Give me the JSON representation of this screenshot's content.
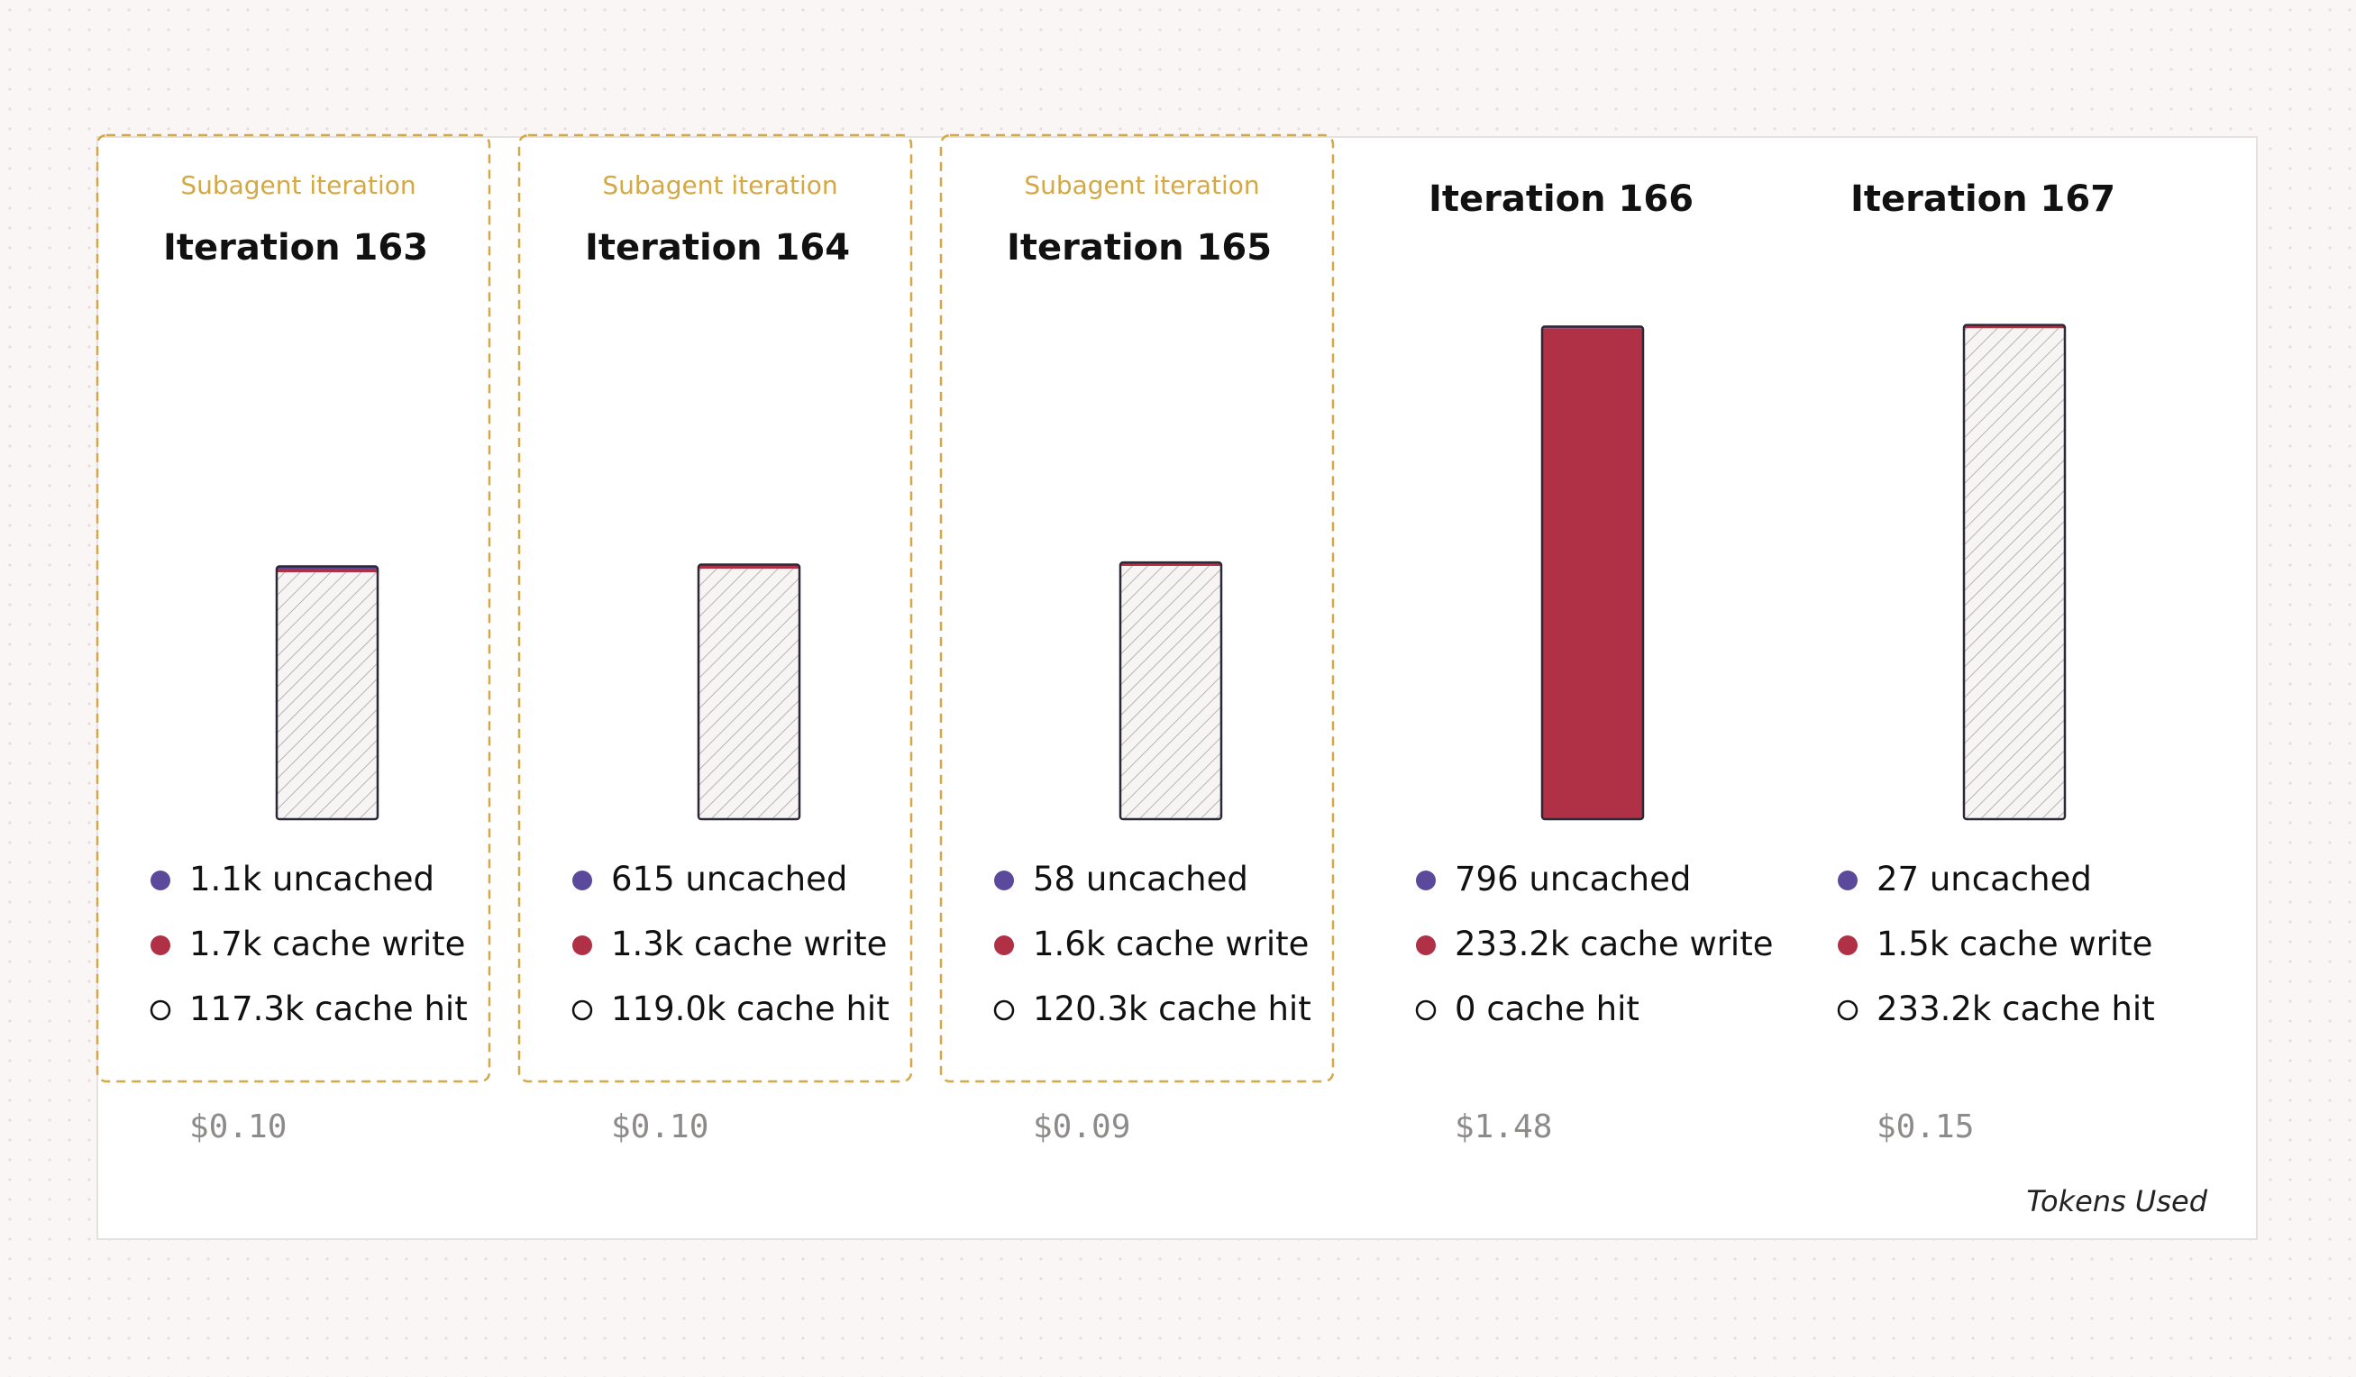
{
  "chart_data": {
    "type": "stacked-bar",
    "categories": [
      "Iteration 163",
      "Iteration 164",
      "Iteration 165",
      "Iteration 166",
      "Iteration 167"
    ],
    "subagent_label": "Subagent iteration",
    "subagent": [
      true,
      true,
      true,
      false,
      false
    ],
    "series": [
      {
        "name": "uncached",
        "color": "#5b4a9b",
        "values": [
          1100,
          615,
          58,
          796,
          27
        ],
        "value_labels": [
          "1.1k",
          "615",
          "58",
          "796",
          "27"
        ]
      },
      {
        "name": "cache write",
        "color": "#b03045",
        "values": [
          1700,
          1300,
          1600,
          233200,
          1500
        ],
        "value_labels": [
          "1.7k",
          "1.3k",
          "1.6k",
          "233.2k",
          "1.5k"
        ]
      },
      {
        "name": "cache hit",
        "color": "hatch",
        "values": [
          117300,
          119000,
          120300,
          0,
          233200
        ],
        "value_labels": [
          "117.3k",
          "119.0k",
          "120.3k",
          "0",
          "233.2k"
        ]
      }
    ],
    "costs": [
      "$0.10",
      "$0.10",
      "$0.09",
      "$1.48",
      "$0.15"
    ],
    "ylim": [
      0,
      250000
    ],
    "ylabel": "Tokens Used"
  }
}
